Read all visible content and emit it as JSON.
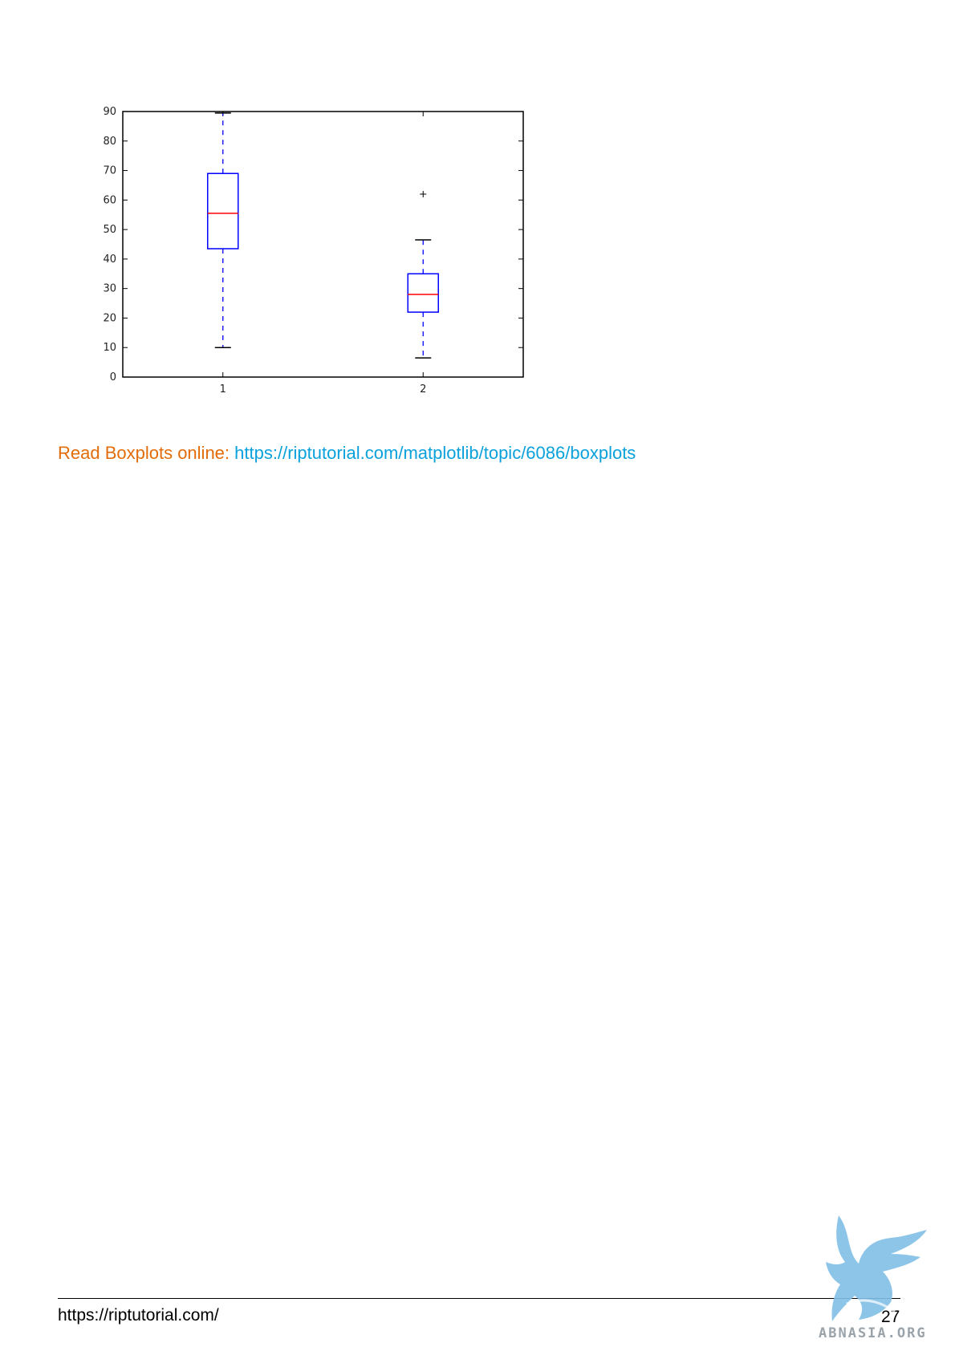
{
  "chart_data": {
    "type": "box",
    "title": "",
    "xlabel": "",
    "ylabel": "",
    "ylim": [
      0,
      90
    ],
    "yticks": [
      0,
      10,
      20,
      30,
      40,
      50,
      60,
      70,
      80,
      90
    ],
    "categories": [
      "1",
      "2"
    ],
    "grid": false,
    "boxes": [
      {
        "category": "1",
        "whisker_low": 10,
        "q1": 43.5,
        "median": 55.5,
        "q3": 69,
        "whisker_high": 89.5,
        "outliers": []
      },
      {
        "category": "2",
        "whisker_low": 6.5,
        "q1": 22,
        "median": 28,
        "q3": 35,
        "whisker_high": 46.5,
        "outliers": [
          62
        ]
      }
    ],
    "colors": {
      "box": "#0000ff",
      "median": "#ff0000",
      "whisker": "#0000ff",
      "cap": "#000000",
      "outlier": "#000000",
      "frame": "#000000"
    }
  },
  "read_online": {
    "label": "Read Boxplots online:",
    "link": "https://riptutorial.com/matplotlib/topic/6086/boxplots"
  },
  "footer": {
    "url": "https://riptutorial.com/",
    "page_number": "27"
  },
  "logo": {
    "icon": "griffin-logo-icon",
    "text": "ABNASIA.ORG",
    "color": "#7fbfe6"
  }
}
